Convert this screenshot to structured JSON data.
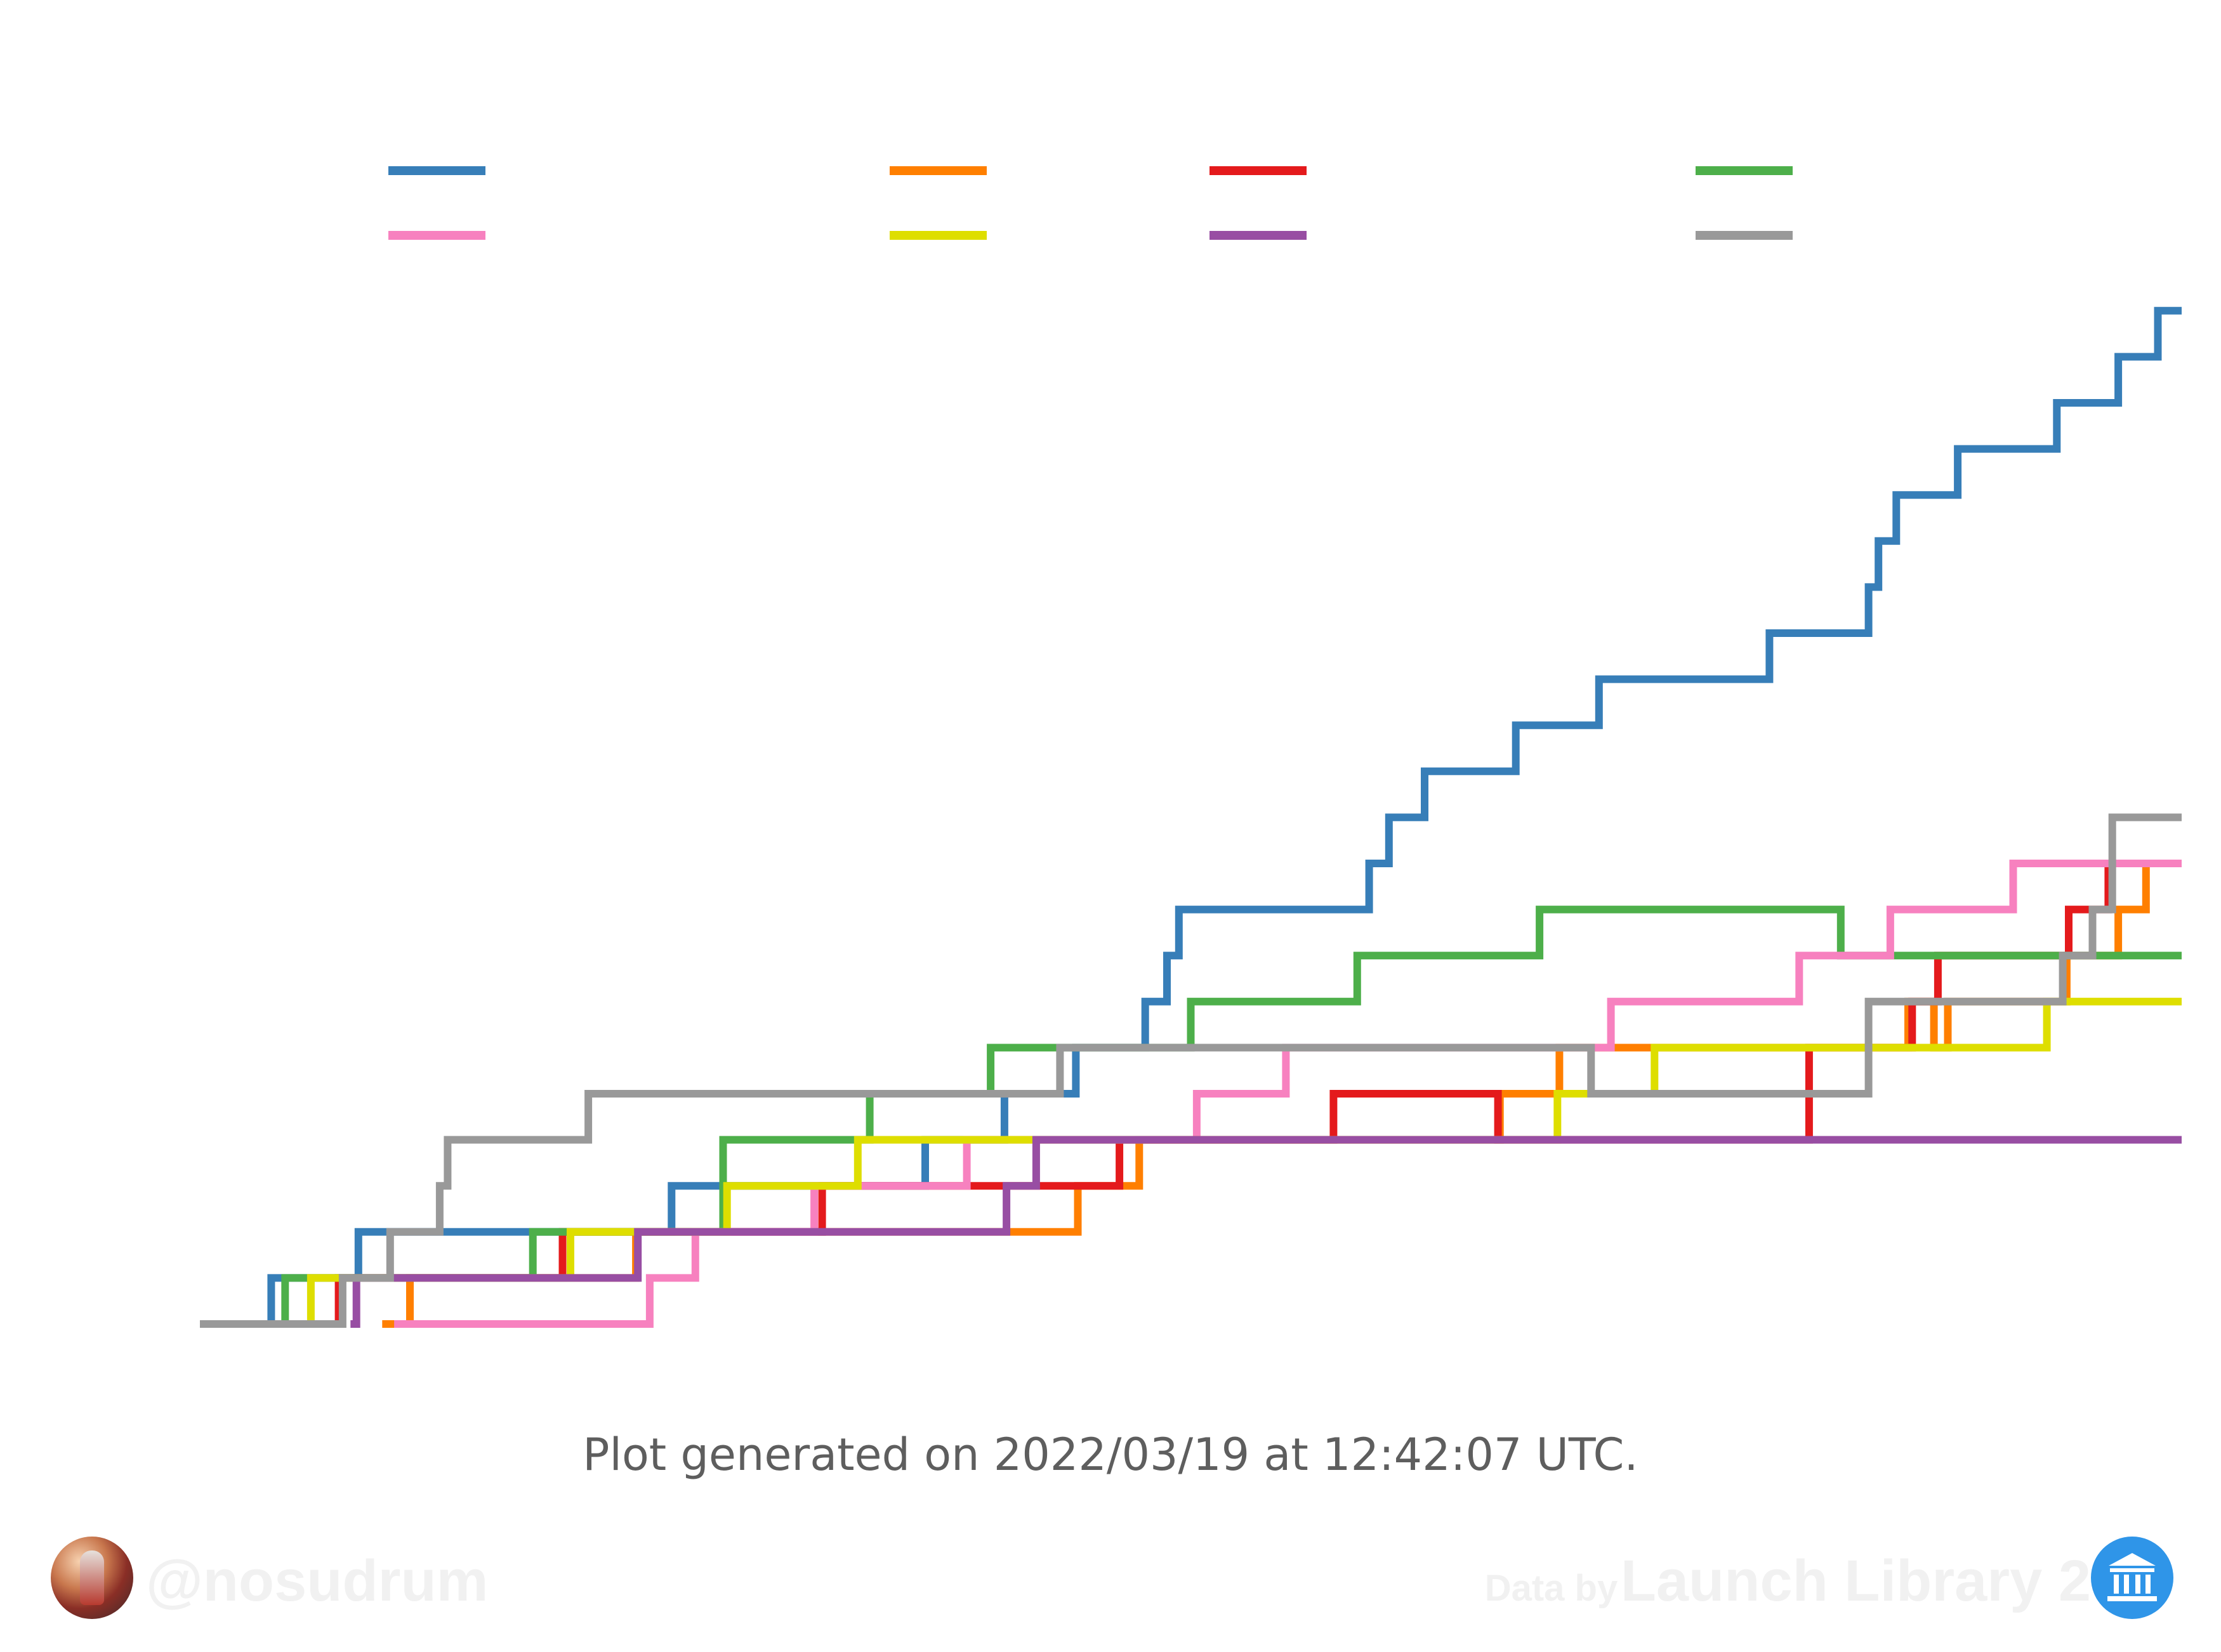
{
  "chart_data": {
    "type": "line",
    "step": "post",
    "title": "",
    "xlabel": "",
    "ylabel": "",
    "legend": {
      "placement": "top",
      "columns": 4,
      "labels_visible": false
    },
    "grid": false,
    "x_unit": "relative time",
    "xlim": [
      0,
      1000
    ],
    "ylim": [
      0,
      22.5
    ],
    "series": [
      {
        "color": "#377eb8",
        "steps": [
          [
            34,
            0
          ],
          [
            36,
            1
          ],
          [
            80,
            2
          ],
          [
            238,
            3
          ],
          [
            366,
            4
          ],
          [
            406,
            5
          ],
          [
            442,
            6
          ],
          [
            477,
            7
          ],
          [
            488,
            8
          ],
          [
            494,
            9
          ],
          [
            590,
            10
          ],
          [
            600,
            11
          ],
          [
            618,
            12
          ],
          [
            664,
            13
          ],
          [
            706,
            14
          ],
          [
            792,
            15
          ],
          [
            842,
            16
          ],
          [
            847,
            17
          ],
          [
            856,
            18
          ],
          [
            887,
            19
          ],
          [
            937,
            20
          ],
          [
            968,
            21
          ],
          [
            988,
            22
          ]
        ]
      },
      {
        "color": "#ff7f00",
        "steps": [
          [
            92,
            0
          ],
          [
            106,
            1
          ],
          [
            220,
            2
          ],
          [
            443,
            3
          ],
          [
            474,
            4
          ],
          [
            656,
            5
          ],
          [
            686,
            6
          ],
          [
            862,
            7
          ],
          [
            875,
            6
          ],
          [
            882,
            7
          ],
          [
            942,
            8
          ],
          [
            968,
            9
          ],
          [
            982,
            10
          ]
        ]
      },
      {
        "color": "#e41a1c",
        "steps": [
          [
            67,
            0
          ],
          [
            70,
            1
          ],
          [
            183,
            2
          ],
          [
            314,
            3
          ],
          [
            464,
            4
          ],
          [
            572,
            5
          ],
          [
            655,
            4
          ],
          [
            812,
            6
          ],
          [
            864,
            7
          ],
          [
            877,
            8
          ],
          [
            943,
            9
          ],
          [
            963,
            10
          ]
        ]
      },
      {
        "color": "#4daf4a",
        "steps": [
          [
            40,
            0
          ],
          [
            43,
            1
          ],
          [
            168,
            2
          ],
          [
            264,
            4
          ],
          [
            338,
            5
          ],
          [
            399,
            6
          ],
          [
            500,
            7
          ],
          [
            584,
            8
          ],
          [
            676,
            9
          ],
          [
            828,
            8
          ]
        ]
      },
      {
        "color": "#f781bf",
        "steps": [
          [
            98,
            0
          ],
          [
            200,
            0
          ],
          [
            227,
            1
          ],
          [
            250,
            2
          ],
          [
            310,
            3
          ],
          [
            387,
            4
          ],
          [
            503,
            5
          ],
          [
            548,
            6
          ],
          [
            712,
            7
          ],
          [
            807,
            8
          ],
          [
            853,
            9
          ],
          [
            915,
            10
          ]
        ]
      },
      {
        "color": "#dede00",
        "steps": [
          [
            49,
            0
          ],
          [
            56,
            1
          ],
          [
            187,
            2
          ],
          [
            266,
            3
          ],
          [
            332,
            4
          ],
          [
            685,
            5
          ],
          [
            734,
            6
          ],
          [
            932,
            7
          ]
        ]
      },
      {
        "color": "#984ea3",
        "steps": [
          [
            76,
            0
          ],
          [
            79,
            1
          ],
          [
            221,
            2
          ],
          [
            407,
            3
          ],
          [
            422,
            4
          ]
        ]
      },
      {
        "color": "#999999",
        "steps": [
          [
            0,
            0
          ],
          [
            72,
            1
          ],
          [
            96,
            2
          ],
          [
            121,
            3
          ],
          [
            125,
            4
          ],
          [
            196,
            5
          ],
          [
            434,
            6
          ],
          [
            702,
            5
          ],
          [
            842,
            7
          ],
          [
            940,
            8
          ],
          [
            955,
            9
          ],
          [
            965,
            11
          ]
        ]
      }
    ]
  },
  "footer": {
    "generated": "Plot generated on 2022/03/19 at 12:42:07 UTC.",
    "handle": "@nosudrum",
    "data_by": "Data by",
    "source": "Launch Library 2"
  },
  "icons": {
    "avatar": "astronaut-avatar-icon",
    "source": "library-building-icon"
  },
  "colors": {
    "background": "#ffffff",
    "caption": "#5e5e5e",
    "watermark": "#f1f1f1",
    "source_icon": "#2f95e8"
  }
}
